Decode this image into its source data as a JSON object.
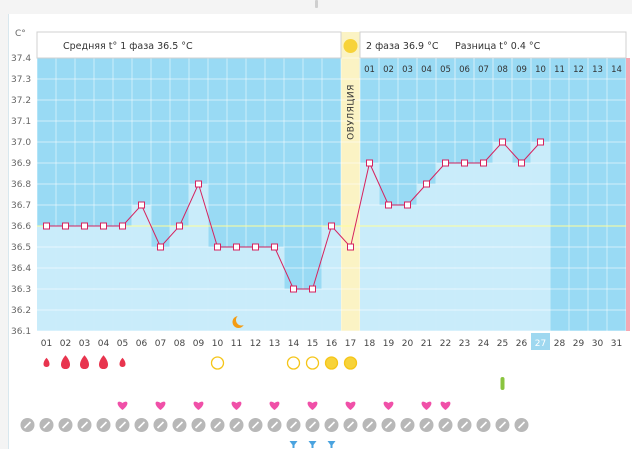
{
  "chart_data": {
    "type": "line",
    "ylabel": "C°",
    "ylim": [
      36.1,
      37.4
    ],
    "y_ticks": [
      "37.4",
      "37.3",
      "37.2",
      "37.1",
      "37.0",
      "36.9",
      "36.8",
      "36.7",
      "36.6",
      "36.5",
      "36.4",
      "36.3",
      "36.2",
      "36.1"
    ],
    "x_labels": [
      "01",
      "02",
      "03",
      "04",
      "05",
      "06",
      "07",
      "08",
      "09",
      "10",
      "11",
      "12",
      "13",
      "14",
      "15",
      "16",
      "17",
      "18",
      "19",
      "20",
      "21",
      "22",
      "23",
      "24",
      "25",
      "26",
      "27",
      "28",
      "29",
      "30",
      "31"
    ],
    "highlight_day": "27",
    "values": [
      36.6,
      36.6,
      36.6,
      36.6,
      36.6,
      36.7,
      36.5,
      36.6,
      36.8,
      36.5,
      36.5,
      36.5,
      36.5,
      36.3,
      36.3,
      36.6,
      36.5,
      36.9,
      36.7,
      36.7,
      36.8,
      36.9,
      36.9,
      36.9,
      37.0,
      36.9,
      37.0
    ],
    "coverline": 36.6,
    "ovulation_day": "17",
    "ovulation_label": "ОВУЛЯЦИЯ",
    "phase1_label": "Средняя t° 1 фаза 36.5 °C",
    "phase2_label": "2 фаза 36.9 °C",
    "difference_label": "Разница t° 0.4 °C",
    "phase2_days": [
      "01",
      "02",
      "03",
      "04",
      "05",
      "06",
      "07",
      "08",
      "09",
      "10",
      "11",
      "12",
      "13",
      "14"
    ],
    "colors": {
      "plot_bg": "#99daf4",
      "bar": "#c9ecfa",
      "line": "#d6225e",
      "ovulation": "#fbf3c4",
      "sun": "#f7d33a",
      "coverline": "#ffff99",
      "highlight": "#9fd8f0",
      "right_edge": "#f4a7b3"
    }
  },
  "icons": {
    "moon_day": "12",
    "bleeding": [
      {
        "day": "01",
        "size": "small"
      },
      {
        "day": "02",
        "size": "large"
      },
      {
        "day": "03",
        "size": "large"
      },
      {
        "day": "04",
        "size": "large"
      },
      {
        "day": "05",
        "size": "small"
      }
    ],
    "circles": [
      {
        "day": "11",
        "filled": false
      },
      {
        "day": "15",
        "filled": false
      },
      {
        "day": "16",
        "filled": false
      },
      {
        "day": "17",
        "filled": true
      },
      {
        "day": "18",
        "filled": true
      }
    ],
    "green_marker_day": "26",
    "heart_days": [
      "06",
      "08",
      "10",
      "12",
      "14",
      "16",
      "18",
      "20",
      "22",
      "23"
    ],
    "pencil_days_count": 27,
    "filter_days": [
      "15",
      "16",
      "17"
    ]
  }
}
